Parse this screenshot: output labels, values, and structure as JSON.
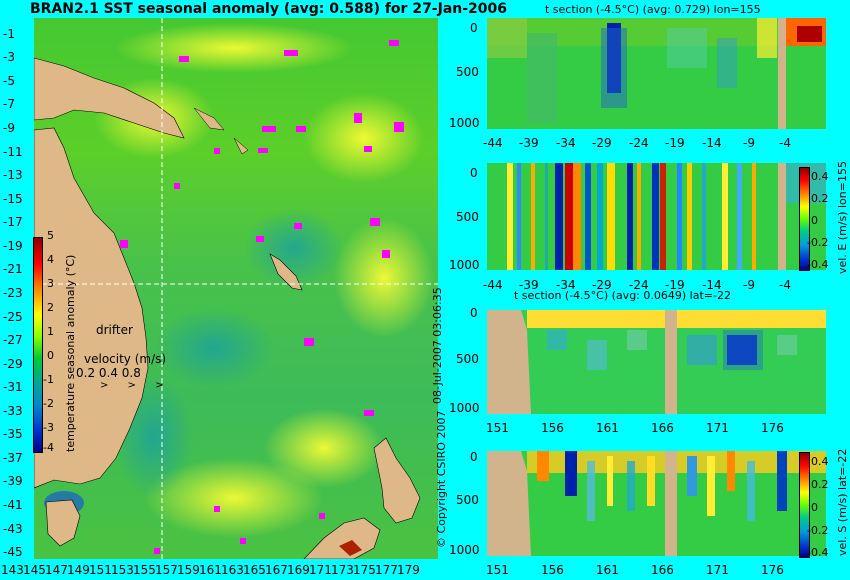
{
  "map": {
    "title": "BRAN2.1 SST seasonal anomaly (avg: 0.588) for 27-Jan-2006",
    "lat_ticks": [
      "-1",
      "-3",
      "-5",
      "-7",
      "-9",
      "-11",
      "-13",
      "-15",
      "-17",
      "-19",
      "-21",
      "-23",
      "-25",
      "-27",
      "-29",
      "-31",
      "-33",
      "-35",
      "-37",
      "-39",
      "-41",
      "-43",
      "-45"
    ],
    "lon_ticks": [
      "143",
      "145",
      "147",
      "149",
      "151",
      "153",
      "155",
      "157",
      "159",
      "161",
      "163",
      "165",
      "167",
      "169",
      "171",
      "173",
      "175",
      "177",
      "179"
    ],
    "colorbar_label": "temperature seasonal anomaly (°C)",
    "colorbar_ticks": [
      "5",
      "4",
      "3",
      "2",
      "1",
      "0",
      "-1",
      "-2",
      "-3",
      "-4"
    ],
    "drifter_label": "drifter",
    "velocity_label": "velocity (m/s)",
    "velocity_values": "0.2 0.4 0.8",
    "velocity_arrows": "> > >",
    "colors": {
      "land": "#deb887",
      "ocean": "#33cc33",
      "marker": "#ff00ff",
      "crosshair": "#ffffff"
    }
  },
  "panels": [
    {
      "id": "t-lon",
      "title": "t section (-4.5°C) (avg: 0.729) lon=155",
      "x_ticks": [
        "-44",
        "-39",
        "-34",
        "-29",
        "-24",
        "-19",
        "-14",
        "-9",
        "-4"
      ],
      "y_ticks": [
        "0",
        "500",
        "1000"
      ]
    },
    {
      "id": "v-lon",
      "title": "",
      "x_ticks": [
        "-44",
        "-39",
        "-34",
        "-29",
        "-24",
        "-19",
        "-14",
        "-9",
        "-4"
      ],
      "y_ticks": [
        "0",
        "500",
        "1000"
      ],
      "cbar_label": "vel. E (m/s) lon=155",
      "cbar_ticks": [
        "0.4",
        "0.2",
        "0",
        "-0.2",
        "-0.4"
      ]
    },
    {
      "id": "t-lat",
      "title": "t section (-4.5°C) (avg: 0.0649) lat=-22",
      "x_ticks": [
        "151",
        "156",
        "161",
        "166",
        "171",
        "176"
      ],
      "y_ticks": [
        "0",
        "500",
        "1000"
      ]
    },
    {
      "id": "v-lat",
      "title": "",
      "x_ticks": [
        "151",
        "156",
        "161",
        "166",
        "171",
        "176"
      ],
      "y_ticks": [
        "0",
        "500",
        "1000"
      ],
      "cbar_label": "vel. S (m/s) lat=-22",
      "cbar_ticks": [
        "0.4",
        "0.2",
        "0",
        "-0.2",
        "-0.4"
      ]
    }
  ],
  "side_text": {
    "timestamp": "08-Jul-2007 03:06:35",
    "copyright": "© Copyright CSIRO 2007"
  },
  "chart_data": [
    {
      "type": "heatmap",
      "title": "BRAN2.1 SST seasonal anomaly (avg: 0.588) for 27-Jan-2006",
      "xlabel": "",
      "ylabel": "",
      "xlim": [
        143,
        180
      ],
      "ylim": [
        -45,
        0
      ],
      "colorbar_range": [
        -4,
        5
      ],
      "average": 0.588,
      "crosshair": {
        "lon": 155,
        "lat": -22
      }
    },
    {
      "type": "heatmap",
      "title": "t section (-4.5°C) (avg: 0.729) lon=155",
      "x_range": [
        -46,
        0
      ],
      "y_range": [
        0,
        1100
      ],
      "average": 0.729
    },
    {
      "type": "heatmap",
      "title": "",
      "label": "vel. E (m/s) lon=155",
      "x_range": [
        -46,
        0
      ],
      "y_range": [
        0,
        1100
      ],
      "colorbar_range": [
        -0.4,
        0.4
      ]
    },
    {
      "type": "heatmap",
      "title": "t section (-4.5°C) (avg: 0.0649) lat=-22",
      "x_range": [
        150,
        181
      ],
      "y_range": [
        0,
        1100
      ],
      "average": 0.0649
    },
    {
      "type": "heatmap",
      "title": "",
      "label": "vel. S (m/s) lat=-22",
      "x_range": [
        150,
        181
      ],
      "y_range": [
        0,
        1100
      ],
      "colorbar_range": [
        -0.4,
        0.4
      ]
    }
  ]
}
